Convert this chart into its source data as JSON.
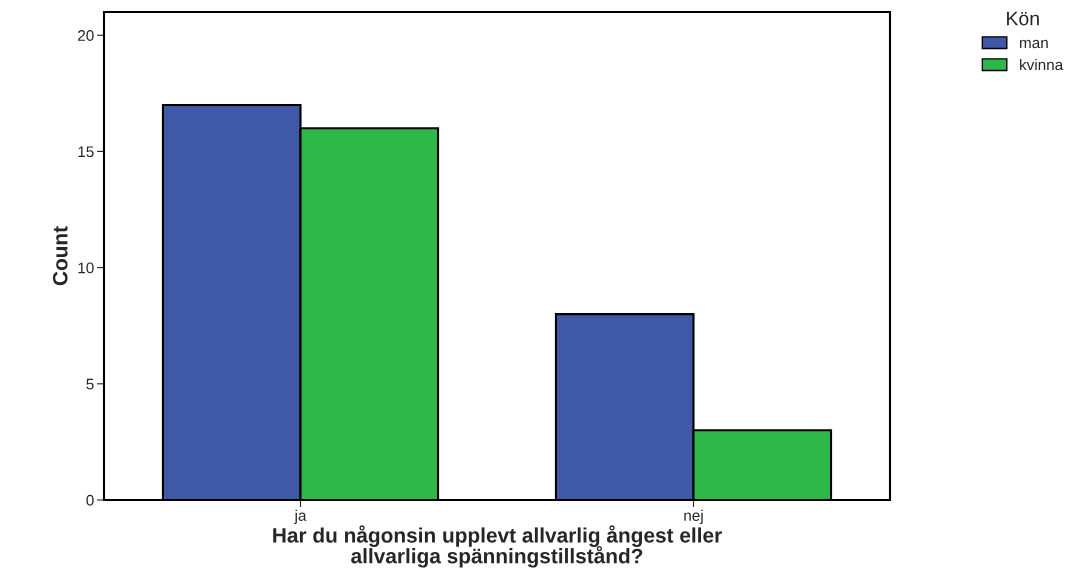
{
  "chart_data": {
    "type": "bar",
    "xlabel": "Har du någonsin upplevt allvarlig ångest eller\nallvarliga spänningstillstånd?",
    "ylabel": "Count",
    "legend_title": "Kön",
    "categories": [
      "ja",
      "nej"
    ],
    "series": [
      {
        "name": "man",
        "color": "#3f58a8",
        "values": [
          17,
          8
        ]
      },
      {
        "name": "kvinna",
        "color": "#2fb84a",
        "values": [
          16,
          3
        ]
      }
    ],
    "ylim": [
      0,
      21
    ],
    "yticks": [
      0,
      5,
      10,
      15,
      20
    ],
    "grid": false,
    "legend": "top right"
  }
}
